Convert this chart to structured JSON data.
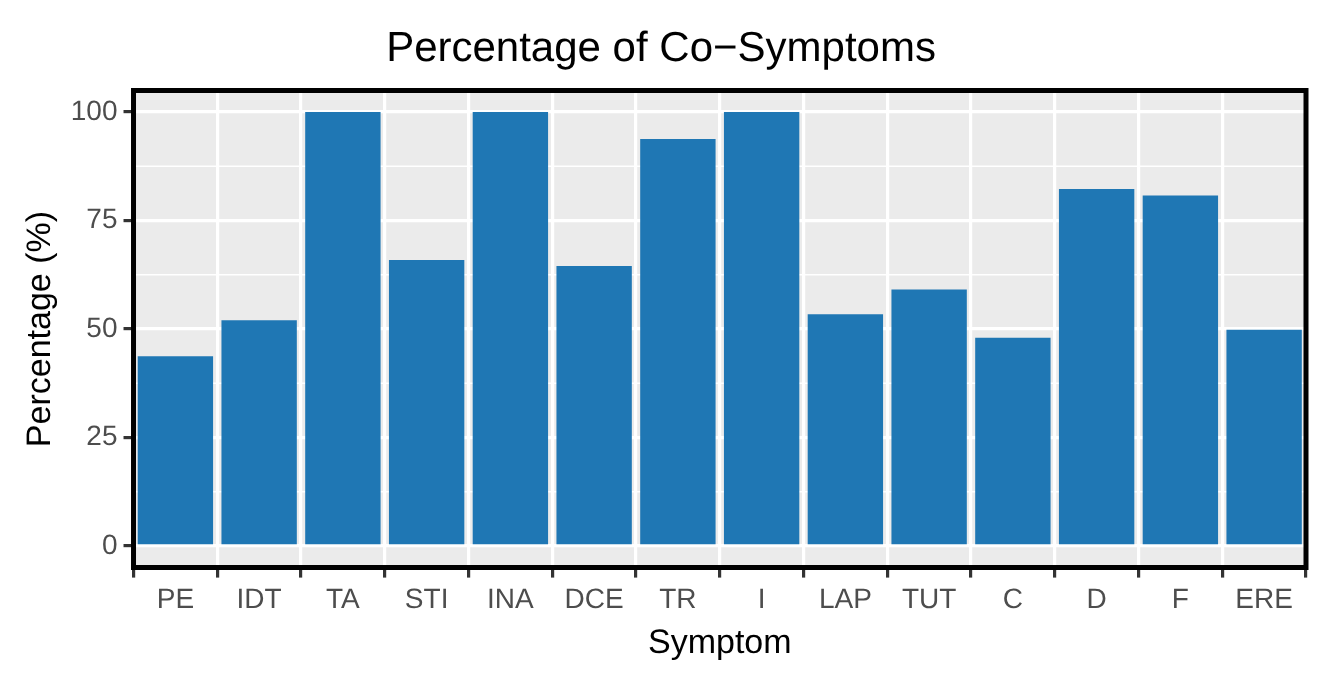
{
  "chart_data": {
    "type": "bar",
    "title": "Percentage of Co−Symptoms",
    "xlabel": "Symptom",
    "ylabel": "Percentage (%)",
    "categories": [
      "PE",
      "IDT",
      "TA",
      "STI",
      "INA",
      "DCE",
      "TR",
      "I",
      "LAP",
      "TUT",
      "C",
      "D",
      "F",
      "ERE"
    ],
    "values": [
      43.7,
      52.0,
      100,
      65.9,
      100,
      64.5,
      93.8,
      100,
      53.4,
      59.1,
      48.0,
      82.3,
      80.8,
      49.8
    ],
    "color": "#1f77b4",
    "ylim": [
      -5,
      105
    ],
    "yticks": [
      0,
      25,
      50,
      75,
      100
    ],
    "grid": true
  }
}
